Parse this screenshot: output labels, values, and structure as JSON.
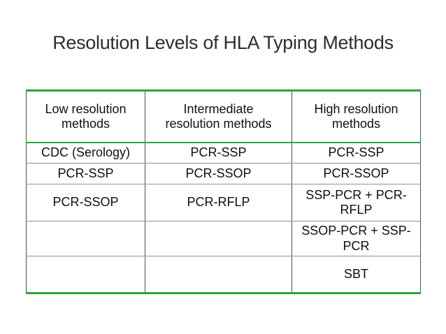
{
  "slide": {
    "title": "Resolution Levels of HLA Typing Methods"
  },
  "table": {
    "headers": [
      "Low resolution methods",
      "Intermediate resolution methods",
      "High resolution methods"
    ],
    "rows": [
      [
        "CDC (Serology)",
        "PCR-SSP",
        "PCR-SSP"
      ],
      [
        "PCR-SSP",
        "PCR-SSOP",
        "PCR-SSOP"
      ],
      [
        "PCR-SSOP",
        "PCR-RFLP",
        "SSP-PCR + PCR-RFLP"
      ],
      [
        "",
        "",
        "SSOP-PCR + SSP-PCR"
      ],
      [
        "",
        "",
        "SBT"
      ]
    ]
  },
  "colors": {
    "accent_green": "#2EA33C",
    "grid_gray": "#909090",
    "border_dark": "#4F4F4F",
    "title_text": "#2D2D2D",
    "cell_text": "#101010",
    "background": "#FFFFFF"
  }
}
